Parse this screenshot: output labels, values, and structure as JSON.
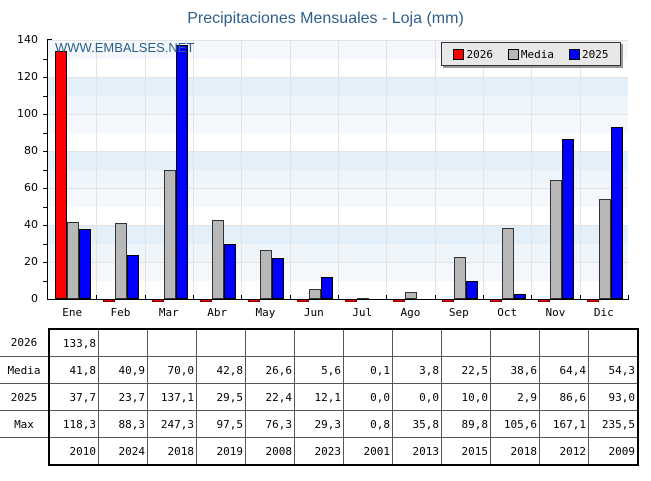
{
  "chart_data": {
    "type": "bar",
    "title": "Precipitaciones Mensuales - Loja (mm)",
    "watermark": "WWW.EMBALSES.NET",
    "xlabel": "",
    "ylabel": "",
    "ylim": [
      0,
      140
    ],
    "yticks": [
      0,
      20,
      40,
      60,
      80,
      100,
      120,
      140
    ],
    "grid": true,
    "legend_position": "top-right",
    "categories": [
      "Ene",
      "Feb",
      "Mar",
      "Abr",
      "May",
      "Jun",
      "Jul",
      "Ago",
      "Sep",
      "Oct",
      "Nov",
      "Dic"
    ],
    "series": [
      {
        "name": "2026",
        "color": "#ff0000",
        "values": [
          133.8,
          null,
          null,
          null,
          null,
          null,
          null,
          null,
          null,
          null,
          null,
          null
        ]
      },
      {
        "name": "Media",
        "color": "#b8b8b8",
        "values": [
          41.8,
          40.9,
          70.0,
          42.8,
          26.6,
          5.6,
          0.1,
          3.8,
          22.5,
          38.6,
          64.4,
          54.3
        ]
      },
      {
        "name": "2025",
        "color": "#0000ff",
        "values": [
          37.7,
          23.7,
          137.1,
          29.5,
          22.4,
          12.1,
          0.0,
          0.0,
          10.0,
          2.9,
          86.6,
          93.0
        ]
      }
    ],
    "table": {
      "rows": [
        {
          "label": "2026",
          "cells": [
            "133,8",
            "",
            "",
            "",
            "",
            "",
            "",
            "",
            "",
            "",
            "",
            ""
          ]
        },
        {
          "label": "Media",
          "cells": [
            "41,8",
            "40,9",
            "70,0",
            "42,8",
            "26,6",
            "5,6",
            "0,1",
            "3,8",
            "22,5",
            "38,6",
            "64,4",
            "54,3"
          ]
        },
        {
          "label": "2025",
          "cells": [
            "37,7",
            "23,7",
            "137,1",
            "29,5",
            "22,4",
            "12,1",
            "0,0",
            "0,0",
            "10,0",
            "2,9",
            "86,6",
            "93,0"
          ]
        },
        {
          "label": "Max",
          "cells": [
            "118,3",
            "88,3",
            "247,3",
            "97,5",
            "76,3",
            "29,3",
            "0,8",
            "35,8",
            "89,8",
            "105,6",
            "167,1",
            "235,5"
          ]
        },
        {
          "label": "",
          "cells": [
            "2010",
            "2024",
            "2018",
            "2019",
            "2008",
            "2023",
            "2001",
            "2013",
            "2015",
            "2018",
            "2012",
            "2009"
          ]
        }
      ]
    }
  }
}
